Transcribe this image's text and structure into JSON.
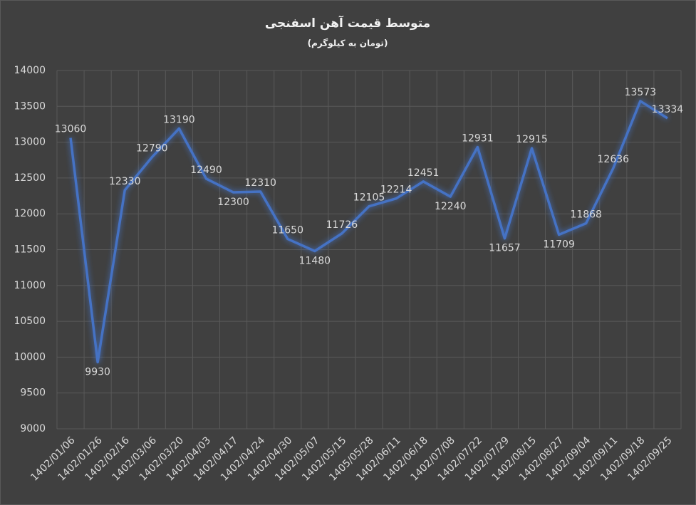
{
  "chart_data": {
    "type": "line",
    "title": "متوسط قیمت آهن اسفنجی",
    "subtitle": "(تومان به کیلوگرم)",
    "categories": [
      "1402/01/06",
      "1402/01/26",
      "1402/02/16",
      "1402/03/06",
      "1402/03/20",
      "1402/04/03",
      "1402/04/17",
      "1402/04/24",
      "1402/04/30",
      "1402/05/07",
      "1402/05/15",
      "1405/05/28",
      "1402/06/11",
      "1402/06/18",
      "1402/07/08",
      "1402/07/22",
      "1402/07/29",
      "1402/08/15",
      "1402/08/27",
      "1402/09/04",
      "1402/09/11",
      "1402/09/18",
      "1402/09/25"
    ],
    "values": [
      13060,
      9930,
      12330,
      12790,
      13190,
      12490,
      12300,
      12310,
      11650,
      11480,
      11726,
      12105,
      12214,
      12451,
      12240,
      12931,
      11657,
      12915,
      11709,
      11868,
      12636,
      13573,
      13334
    ],
    "color": "#4472c4",
    "ylim": [
      9000,
      14000
    ],
    "yticks": [
      9000,
      9500,
      10000,
      10500,
      11000,
      11500,
      12000,
      12500,
      13000,
      13500,
      14000
    ],
    "grid": true
  }
}
